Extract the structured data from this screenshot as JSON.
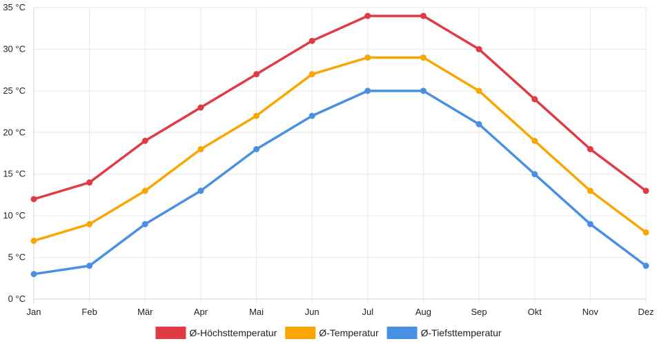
{
  "chart_data": {
    "type": "line",
    "categories": [
      "Jan",
      "Feb",
      "Mär",
      "Apr",
      "Mai",
      "Jun",
      "Jul",
      "Aug",
      "Sep",
      "Okt",
      "Nov",
      "Dez"
    ],
    "series": [
      {
        "name": "Ø-Höchsttemperatur",
        "color": "#e03a45",
        "values": [
          12,
          14,
          19,
          23,
          27,
          31,
          34,
          34,
          30,
          24,
          18,
          13
        ]
      },
      {
        "name": "Ø-Temperatur",
        "color": "#f9a602",
        "values": [
          7,
          9,
          13,
          18,
          22,
          27,
          29,
          29,
          25,
          19,
          13,
          8
        ]
      },
      {
        "name": "Ø-Tiefsttemperatur",
        "color": "#4a90e2",
        "values": [
          3,
          4,
          9,
          13,
          18,
          22,
          25,
          25,
          21,
          15,
          9,
          4
        ]
      }
    ],
    "y_ticks": [
      "0 °C",
      "5 °C",
      "10 °C",
      "15 °C",
      "20 °C",
      "25 °C",
      "30 °C",
      "35 °C"
    ],
    "ylim": [
      0,
      35
    ],
    "y_step": 5,
    "title": "",
    "xlabel": "",
    "ylabel": "",
    "grid": true,
    "legend_position": "bottom"
  }
}
